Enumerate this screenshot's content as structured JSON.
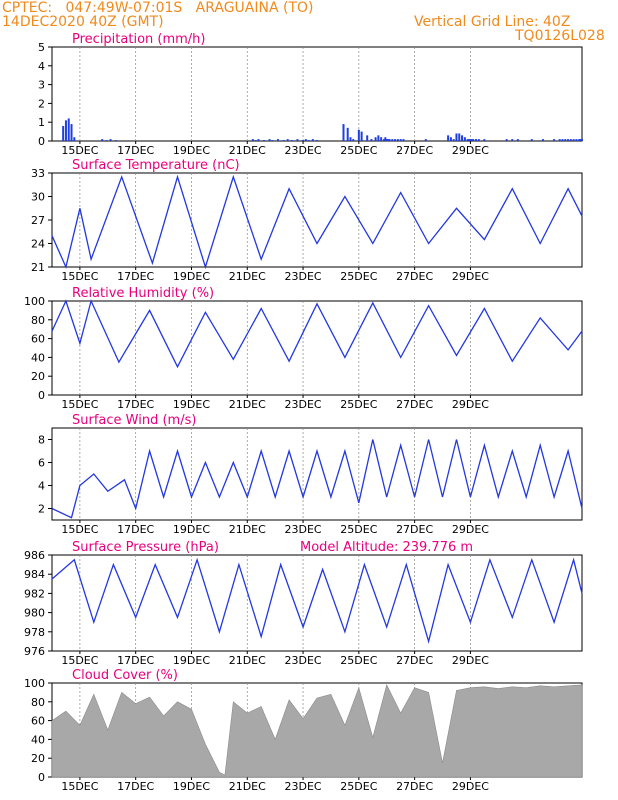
{
  "header": {
    "line1": "CPTEC:   047:49W-07:01S   ARAGUAINA (TO)",
    "line2": "14DEC2020 40Z (GMT)",
    "grid_note": "Vertical Grid Line: 40Z",
    "model": "TQ0126L028"
  },
  "x_labels": [
    "15DEC",
    "17DEC",
    "19DEC",
    "21DEC",
    "23DEC",
    "25DEC",
    "27DEC",
    "29DEC"
  ],
  "chart_data": [
    {
      "id": "precip",
      "type": "bar",
      "title": "Precipitation (mm/h)",
      "extra": "",
      "ylim": [
        0,
        5
      ],
      "yticks": [
        0,
        1,
        2,
        3,
        4,
        5
      ],
      "color": "#1f3fe0",
      "x": [
        0.4,
        0.5,
        0.6,
        0.7,
        0.8,
        1.8,
        1.95,
        2.1,
        2.3,
        7.2,
        7.3,
        7.4,
        7.6,
        7.8,
        7.9,
        8.1,
        8.3,
        8.45,
        8.6,
        8.8,
        9.0,
        9.1,
        9.2,
        9.35,
        9.5,
        10.45,
        10.6,
        10.7,
        10.8,
        11.0,
        11.1,
        11.3,
        11.45,
        11.6,
        11.7,
        11.8,
        11.9,
        11.95,
        12.0,
        12.05,
        12.1,
        12.2,
        12.3,
        12.4,
        12.5,
        12.6,
        13.4,
        14.2,
        14.3,
        14.4,
        14.5,
        14.6,
        14.7,
        14.8,
        14.9,
        14.95,
        15.0,
        15.05,
        15.1,
        15.2,
        15.3,
        15.5,
        16.3,
        16.5,
        16.7,
        17.2,
        17.6,
        18.0,
        18.2,
        18.3,
        18.4,
        18.5,
        18.6,
        18.7,
        18.8,
        18.9,
        18.95,
        19.0
      ],
      "values": [
        0.8,
        1.1,
        1.2,
        0.9,
        0.2,
        0.1,
        0.05,
        0.1,
        0.05,
        0.1,
        0.05,
        0.1,
        0.05,
        0.1,
        0.05,
        0.1,
        0.05,
        0.1,
        0.05,
        0.1,
        0.05,
        0.1,
        0.05,
        0.1,
        0.05,
        0.9,
        0.7,
        0.2,
        0.1,
        0.6,
        0.5,
        0.3,
        0.1,
        0.2,
        0.3,
        0.2,
        0.1,
        0.2,
        0.1,
        0.1,
        0.1,
        0.1,
        0.1,
        0.1,
        0.1,
        0.1,
        0.1,
        0.3,
        0.2,
        0.1,
        0.4,
        0.4,
        0.3,
        0.2,
        0.1,
        0.1,
        0.1,
        0.1,
        0.1,
        0.1,
        0.1,
        0.1,
        0.1,
        0.1,
        0.1,
        0.1,
        0.1,
        0.1,
        0.1,
        0.1,
        0.1,
        0.1,
        0.1,
        0.1,
        0.1,
        0.1,
        0.1,
        0.1
      ]
    },
    {
      "id": "temp",
      "type": "line",
      "title": "Surface Temperature (nC)",
      "extra": "",
      "ylim": [
        21,
        33
      ],
      "yticks": [
        21,
        24,
        27,
        30,
        33
      ],
      "color": "#2338e0",
      "x": [
        0,
        0.5,
        1,
        1.4,
        2.5,
        3.6,
        4.5,
        5.5,
        6.5,
        7.5,
        8.5,
        9.5,
        10.5,
        11.5,
        12.5,
        13.5,
        14.5,
        15.5,
        16.5,
        17.5,
        18.5,
        19.0
      ],
      "values": [
        25,
        21,
        28.5,
        22,
        32.5,
        21.5,
        32.5,
        21,
        32.5,
        22,
        31,
        24,
        30,
        24,
        30.5,
        24,
        28.5,
        24.5,
        31,
        24,
        31,
        27.5
      ]
    },
    {
      "id": "rh",
      "type": "line",
      "title": "Relative Humidity (%)",
      "extra": "",
      "ylim": [
        0,
        100
      ],
      "yticks": [
        0,
        20,
        40,
        60,
        80,
        100
      ],
      "color": "#2338e0",
      "x": [
        0,
        0.5,
        1,
        1.4,
        2.4,
        3.5,
        4.5,
        5.5,
        6.5,
        7.5,
        8.5,
        9.5,
        10.5,
        11.5,
        12.5,
        13.5,
        14.5,
        15.5,
        16.5,
        17.5,
        18.5,
        19.0
      ],
      "values": [
        68,
        100,
        55,
        100,
        35,
        90,
        30,
        88,
        38,
        92,
        36,
        97,
        40,
        98,
        40,
        95,
        42,
        92,
        36,
        82,
        48,
        68
      ]
    },
    {
      "id": "wind",
      "type": "line",
      "title": "Surface Wind (m/s)",
      "extra": "",
      "ylim": [
        1,
        9
      ],
      "yticks": [
        2,
        4,
        6,
        8
      ],
      "color": "#2338e0",
      "x": [
        0,
        0.7,
        1,
        1.5,
        2.0,
        2.6,
        3.0,
        3.5,
        4.0,
        4.5,
        5.0,
        5.5,
        6.0,
        6.5,
        7.0,
        7.5,
        8.0,
        8.5,
        9.0,
        9.5,
        10.0,
        10.5,
        11.0,
        11.5,
        12.0,
        12.5,
        13.0,
        13.5,
        14.0,
        14.5,
        15.0,
        15.5,
        16.0,
        16.5,
        17.0,
        17.5,
        18.0,
        18.5,
        19.0
      ],
      "values": [
        2,
        1.2,
        4,
        5,
        3.5,
        4.5,
        2,
        7,
        3,
        7,
        3,
        6,
        3,
        6,
        3,
        7,
        3,
        7,
        3,
        7,
        3,
        7,
        2.5,
        8,
        3,
        7.5,
        3,
        8,
        3,
        8,
        3,
        7.5,
        3,
        7,
        3,
        7.5,
        3,
        7,
        2
      ]
    },
    {
      "id": "press",
      "type": "line",
      "title": "Surface Pressure (hPa)",
      "extra": "Model Altitude: 239.776 m",
      "ylim": [
        976,
        986
      ],
      "yticks": [
        976,
        978,
        980,
        982,
        984,
        986
      ],
      "color": "#2338e0",
      "x": [
        0,
        0.8,
        1.5,
        2.2,
        3.0,
        3.7,
        4.5,
        5.2,
        6.0,
        6.7,
        7.5,
        8.2,
        9.0,
        9.7,
        10.5,
        11.2,
        12.0,
        12.7,
        13.5,
        14.2,
        15.0,
        15.7,
        16.5,
        17.2,
        18.0,
        18.7,
        19.0
      ],
      "values": [
        983.5,
        985.5,
        979,
        985,
        979.5,
        985,
        979.5,
        985.5,
        978,
        985,
        977.5,
        985,
        978.5,
        984.5,
        978,
        985,
        978.5,
        985,
        977,
        985,
        979,
        985.5,
        979.5,
        985.5,
        979,
        985.5,
        982
      ]
    },
    {
      "id": "cloud",
      "type": "area",
      "title": "Cloud Cover (%)",
      "extra": "",
      "ylim": [
        0,
        100
      ],
      "yticks": [
        0,
        20,
        40,
        60,
        80,
        100
      ],
      "color": "#a8a8a8",
      "x": [
        0,
        0.5,
        1,
        1.5,
        2,
        2.5,
        3,
        3.5,
        4,
        4.5,
        5,
        5.5,
        6,
        6.2,
        6.5,
        7,
        7.5,
        8,
        8.5,
        9,
        9.5,
        10,
        10.5,
        11,
        11.5,
        12,
        12.5,
        13,
        13.5,
        14,
        14.5,
        15,
        15.5,
        16,
        16.5,
        17,
        17.5,
        18,
        18.5,
        19
      ],
      "values": [
        60,
        70,
        55,
        88,
        50,
        90,
        78,
        85,
        65,
        80,
        72,
        35,
        5,
        2,
        80,
        68,
        75,
        40,
        82,
        62,
        84,
        88,
        55,
        95,
        42,
        98,
        68,
        95,
        90,
        15,
        92,
        95,
        96,
        94,
        96,
        95,
        97,
        96,
        97,
        98
      ]
    }
  ]
}
